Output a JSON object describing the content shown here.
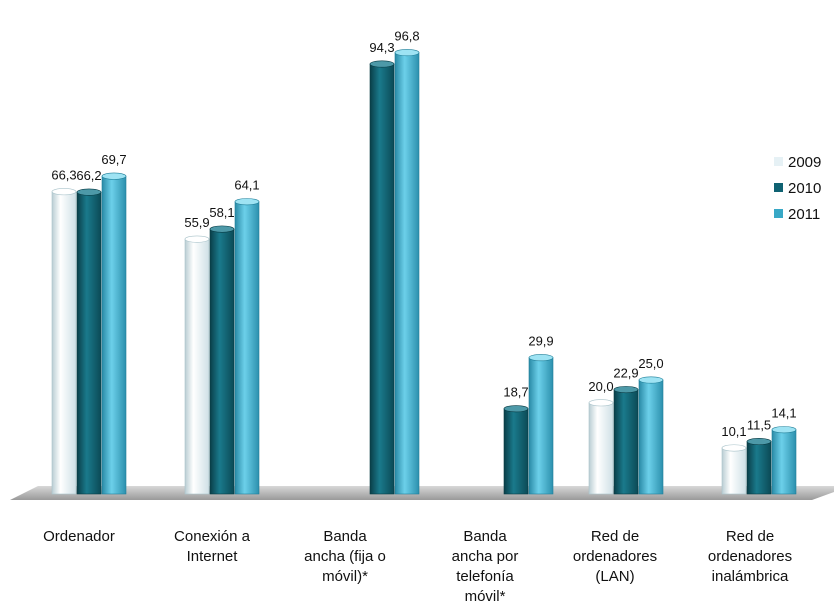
{
  "chart_data": {
    "type": "bar",
    "categories": [
      [
        "Ordenador"
      ],
      [
        "Conexión a",
        "Internet"
      ],
      [
        "Banda",
        "ancha (fija o",
        "móvil)*"
      ],
      [
        "Banda",
        "ancha por",
        "telefonía",
        "móvil*"
      ],
      [
        "Red de",
        "ordenadores",
        "(LAN)"
      ],
      [
        "Red de",
        "ordenadores",
        "inalámbrica"
      ]
    ],
    "series": [
      {
        "name": "2009",
        "values": [
          66.3,
          55.9,
          null,
          null,
          20.0,
          10.1
        ],
        "labels": [
          "66,3",
          "55,9",
          null,
          null,
          "20,0",
          "10,1"
        ]
      },
      {
        "name": "2010",
        "values": [
          66.2,
          58.1,
          94.3,
          18.7,
          22.9,
          11.5
        ],
        "labels": [
          "66,2",
          "58,1",
          "94,3",
          "18,7",
          "22,9",
          "11,5"
        ]
      },
      {
        "name": "2011",
        "values": [
          69.7,
          64.1,
          96.8,
          29.9,
          25.0,
          14.1
        ],
        "labels": [
          "69,7",
          "64,1",
          "96,8",
          "29,9",
          "25,0",
          "14,1"
        ]
      }
    ],
    "ylim": [
      0,
      100
    ],
    "grid": false,
    "legend_position": "right",
    "colors": {
      "2009": "#e6f1f5",
      "2010": "#0f6272",
      "2011": "#38a8c6",
      "floor": "#b8b8b8"
    }
  }
}
